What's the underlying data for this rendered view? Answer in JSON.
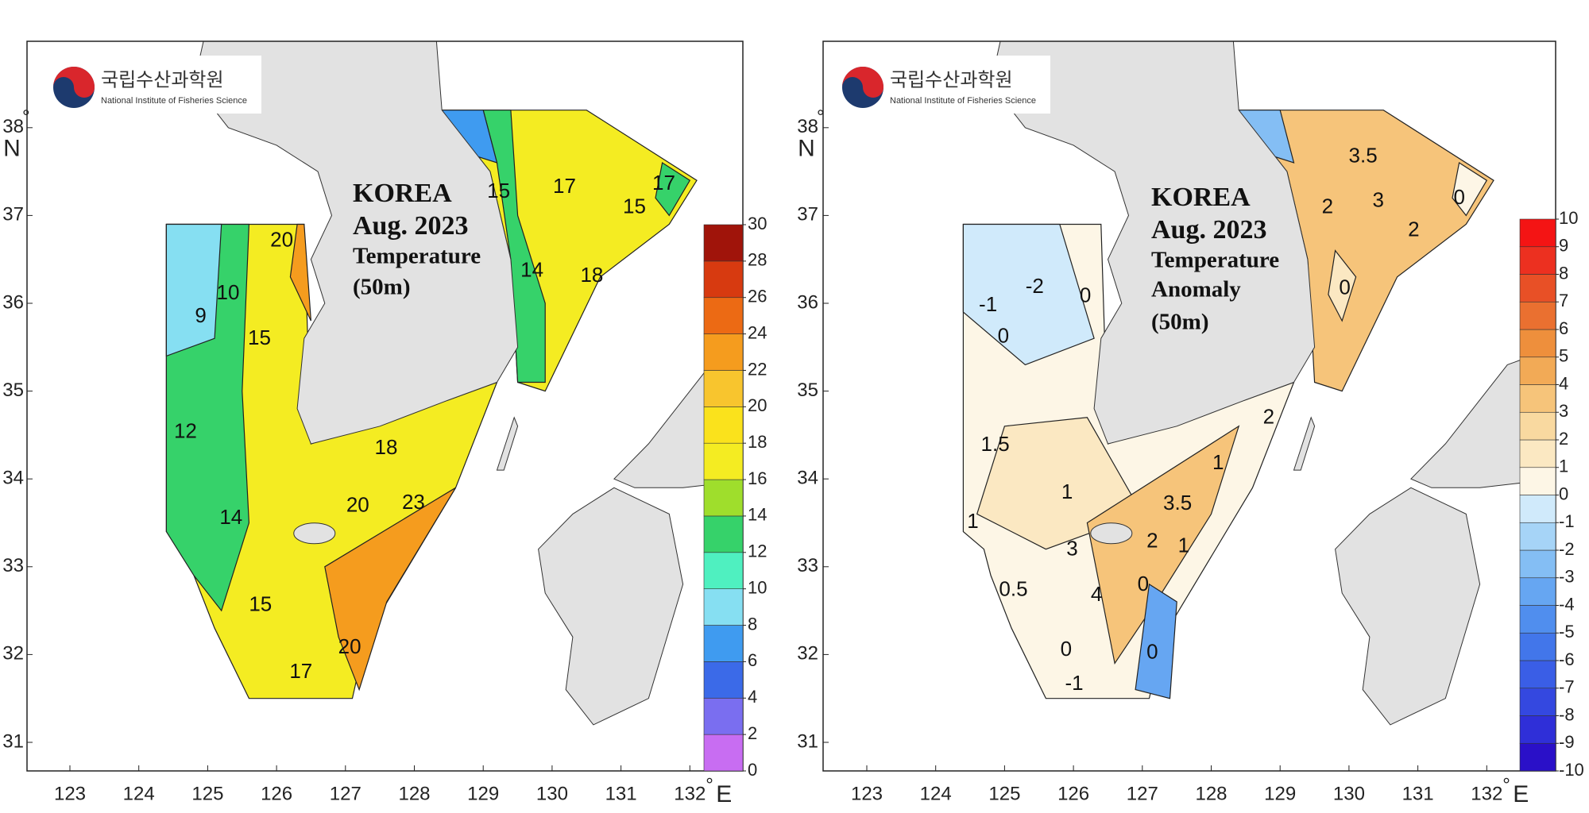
{
  "panels": [
    {
      "logo": {
        "korean": "국립수산과학원",
        "english": "National Institute of Fisheries Science"
      },
      "title": [
        "KOREA",
        "Aug. 2023",
        "Temperature",
        "(50m)"
      ],
      "x_ticks": [
        123,
        124,
        125,
        126,
        127,
        128,
        129,
        130,
        131,
        132
      ],
      "y_ticks": [
        31,
        32,
        33,
        34,
        35,
        36,
        37,
        38
      ],
      "degree": "°",
      "x_unit": "E",
      "y_unit": "N",
      "colorbar": {
        "ticks": [
          0,
          2,
          4,
          6,
          8,
          10,
          12,
          14,
          16,
          18,
          20,
          22,
          24,
          26,
          28,
          30
        ],
        "colors": [
          "#c86df2",
          "#7a6ef0",
          "#3b6ae8",
          "#3f9bf0",
          "#86dff2",
          "#4ff0c0",
          "#36d26a",
          "#9fde2c",
          "#f4ec22",
          "#fae21c",
          "#f8c52e",
          "#f59c1e",
          "#ec6a14",
          "#d73a10",
          "#a0140a"
        ]
      },
      "contour_labels": [
        9,
        10,
        20,
        15,
        12,
        14,
        15,
        18,
        20,
        23,
        17,
        20,
        15,
        17,
        14,
        18,
        15,
        17
      ]
    },
    {
      "logo": {
        "korean": "국립수산과학원",
        "english": "National Institute of Fisheries Science"
      },
      "title": [
        "KOREA",
        "Aug. 2023",
        "Temperature",
        "Anomaly",
        "(50m)"
      ],
      "x_ticks": [
        123,
        124,
        125,
        126,
        127,
        128,
        129,
        130,
        131,
        132
      ],
      "y_ticks": [
        31,
        32,
        33,
        34,
        35,
        36,
        37,
        38
      ],
      "degree": "°",
      "x_unit": "E",
      "y_unit": "N",
      "colorbar": {
        "ticks": [
          -10,
          -9,
          -8,
          -7,
          -6,
          -5,
          -4,
          -3,
          -2,
          -1,
          0,
          1,
          2,
          3,
          4,
          5,
          6,
          7,
          8,
          9,
          10
        ],
        "colors": [
          "#2a10c8",
          "#2f2fd8",
          "#3448e0",
          "#3a5ee6",
          "#4276ea",
          "#508eee",
          "#66a6f2",
          "#84bef4",
          "#a6d4f7",
          "#d0eafb",
          "#fdf6e6",
          "#fbe8c2",
          "#f9d9a0",
          "#f6c47a",
          "#f2aa56",
          "#ee8f3c",
          "#ea7030",
          "#e85026",
          "#ec3020",
          "#f41414"
        ]
      },
      "contour_labels": [
        -2,
        -1,
        0,
        0,
        1.5,
        1,
        1,
        3,
        0.5,
        4,
        0,
        -1,
        0,
        0,
        3.5,
        2,
        1,
        1,
        2,
        3.5,
        3,
        2,
        0,
        0,
        2
      ]
    }
  ]
}
